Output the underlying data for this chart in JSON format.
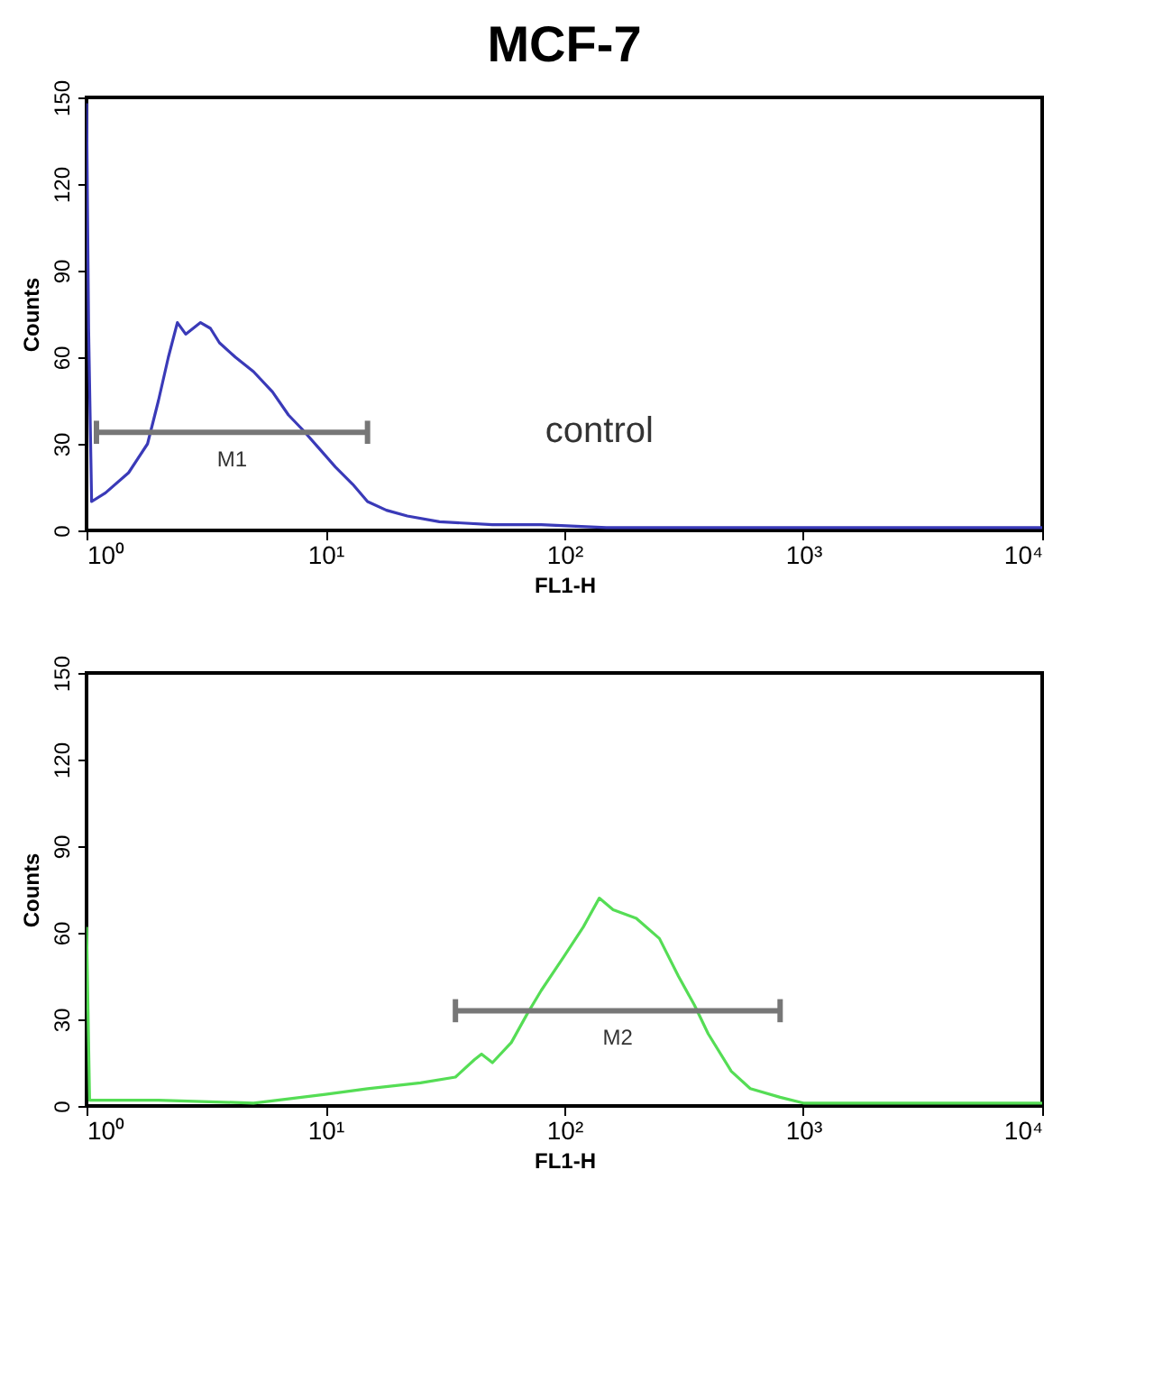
{
  "chart_data": [
    {
      "type": "line",
      "title": "MCF-7",
      "xlabel": "FL1-H",
      "ylabel": "Counts",
      "log": "x",
      "grid": false,
      "xlim": [
        1,
        10000
      ],
      "xticks": [
        {
          "value": 1,
          "label": "10⁰"
        },
        {
          "value": 10,
          "label": "10¹"
        },
        {
          "value": 100,
          "label": "10²"
        },
        {
          "value": 1000,
          "label": "10³"
        },
        {
          "value": 10000,
          "label": "10⁴"
        }
      ],
      "ylim": [
        0,
        150
      ],
      "yticks": [
        0,
        30,
        60,
        90,
        120,
        150
      ],
      "series": [
        {
          "name": "control",
          "color": "#3a3ab8",
          "x": [
            1.0,
            1.02,
            1.05,
            1.2,
            1.5,
            1.8,
            2.0,
            2.2,
            2.4,
            2.6,
            3.0,
            3.3,
            3.6,
            4.2,
            5.0,
            6.0,
            7.0,
            8.0,
            9.5,
            11,
            13,
            15,
            18,
            22,
            30,
            50,
            80,
            150,
            500,
            2000,
            10000
          ],
          "values": [
            148,
            70,
            10,
            13,
            20,
            30,
            45,
            60,
            72,
            68,
            72,
            70,
            65,
            60,
            55,
            48,
            40,
            35,
            28,
            22,
            16,
            10,
            7,
            5,
            3,
            2,
            2,
            1,
            1,
            1,
            1
          ]
        },
        {
          "name": "M1",
          "color": "#777777",
          "x": [
            1.1,
            15
          ],
          "values": [
            34,
            34
          ],
          "errors": [
            4,
            4
          ]
        }
      ]
    },
    {
      "type": "line",
      "xlabel": "FL1-H",
      "ylabel": "Counts",
      "log": "x",
      "grid": false,
      "xlim": [
        1,
        10000
      ],
      "xticks": [
        {
          "value": 1,
          "label": "10⁰"
        },
        {
          "value": 10,
          "label": "10¹"
        },
        {
          "value": 100,
          "label": "10²"
        },
        {
          "value": 1000,
          "label": "10³"
        },
        {
          "value": 10000,
          "label": "10⁴"
        }
      ],
      "ylim": [
        0,
        150
      ],
      "yticks": [
        0,
        30,
        60,
        90,
        120,
        150
      ],
      "series": [
        {
          "color": "#55dd55",
          "x": [
            1.0,
            1.03,
            2,
            5,
            10,
            15,
            25,
            35,
            42,
            45,
            50,
            60,
            70,
            80,
            100,
            120,
            140,
            160,
            200,
            250,
            300,
            350,
            400,
            500,
            600,
            800,
            1000,
            2000,
            10000
          ],
          "values": [
            62,
            2,
            2,
            1,
            4,
            6,
            8,
            10,
            16,
            18,
            15,
            22,
            32,
            40,
            52,
            62,
            72,
            68,
            65,
            58,
            45,
            35,
            25,
            12,
            6,
            3,
            1,
            1,
            1
          ]
        },
        {
          "name": "M2",
          "color": "#777777",
          "x": [
            35,
            800
          ],
          "values": [
            33,
            33
          ],
          "errors": [
            4,
            4
          ]
        }
      ]
    }
  ]
}
